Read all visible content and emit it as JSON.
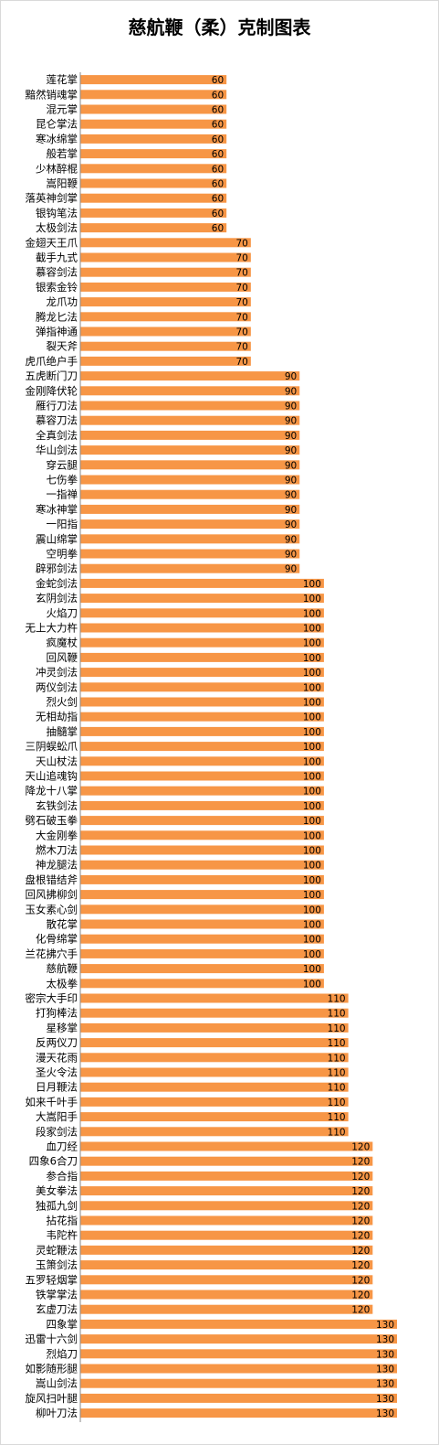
{
  "chart_data": {
    "type": "bar",
    "orientation": "horizontal",
    "title": "慈航鞭（柔）克制图表",
    "xlabel": "",
    "ylabel": "",
    "xlim": [
      0,
      130
    ],
    "grid": false,
    "legend": "none",
    "bar_color": "#f79646",
    "categories": [
      "莲花掌",
      "黯然销魂掌",
      "混元掌",
      "昆仑掌法",
      "寒冰绵掌",
      "般若掌",
      "少林醉棍",
      "嵩阳鞭",
      "落英神剑掌",
      "银钩笔法",
      "太极剑法",
      "金翅天王爪",
      "截手九式",
      "慕容剑法",
      "银索金铃",
      "龙爪功",
      "腾龙匕法",
      "弹指神通",
      "裂天斧",
      "虎爪绝户手",
      "五虎断门刀",
      "金刚降伏轮",
      "雁行刀法",
      "慕容刀法",
      "全真剑法",
      "华山剑法",
      "穿云腿",
      "七伤拳",
      "一指禅",
      "寒冰神掌",
      "一阳指",
      "震山绵掌",
      "空明拳",
      "辟邪剑法",
      "金蛇剑法",
      "玄阴剑法",
      "火焰刀",
      "无上大力杵",
      "疯魔杖",
      "回风鞭",
      "冲灵剑法",
      "两仪剑法",
      "烈火剑",
      "无相劫指",
      "抽髓掌",
      "三阴蜈蚣爪",
      "天山杖法",
      "天山追魂钩",
      "降龙十八掌",
      "玄铁剑法",
      "劈石破玉拳",
      "大金刚拳",
      "燃木刀法",
      "神龙腿法",
      "盘根错结斧",
      "回风拂柳剑",
      "玉女素心剑",
      "散花掌",
      "化骨绵掌",
      "兰花拂穴手",
      "慈航鞭",
      "太极拳",
      "密宗大手印",
      "打狗棒法",
      "星移掌",
      "反两仪刀",
      "漫天花雨",
      "圣火令法",
      "日月鞭法",
      "如来千叶手",
      "大嵩阳手",
      "段家剑法",
      "血刀经",
      "四象6合刀",
      "参合指",
      "美女拳法",
      "独孤九剑",
      "拈花指",
      "韦陀杵",
      "灵蛇鞭法",
      "玉箫剑法",
      "五罗轻烟掌",
      "铁掌掌法",
      "玄虚刀法",
      "四象掌",
      "迅雷十六剑",
      "烈焰刀",
      "如影随形腿",
      "嵩山剑法",
      "旋风扫叶腿",
      "柳叶刀法"
    ],
    "values": [
      60,
      60,
      60,
      60,
      60,
      60,
      60,
      60,
      60,
      60,
      60,
      70,
      70,
      70,
      70,
      70,
      70,
      70,
      70,
      70,
      90,
      90,
      90,
      90,
      90,
      90,
      90,
      90,
      90,
      90,
      90,
      90,
      90,
      90,
      100,
      100,
      100,
      100,
      100,
      100,
      100,
      100,
      100,
      100,
      100,
      100,
      100,
      100,
      100,
      100,
      100,
      100,
      100,
      100,
      100,
      100,
      100,
      100,
      100,
      100,
      100,
      100,
      110,
      110,
      110,
      110,
      110,
      110,
      110,
      110,
      110,
      110,
      120,
      120,
      120,
      120,
      120,
      120,
      120,
      120,
      120,
      120,
      120,
      120,
      130,
      130,
      130,
      130,
      130,
      130,
      130
    ]
  }
}
